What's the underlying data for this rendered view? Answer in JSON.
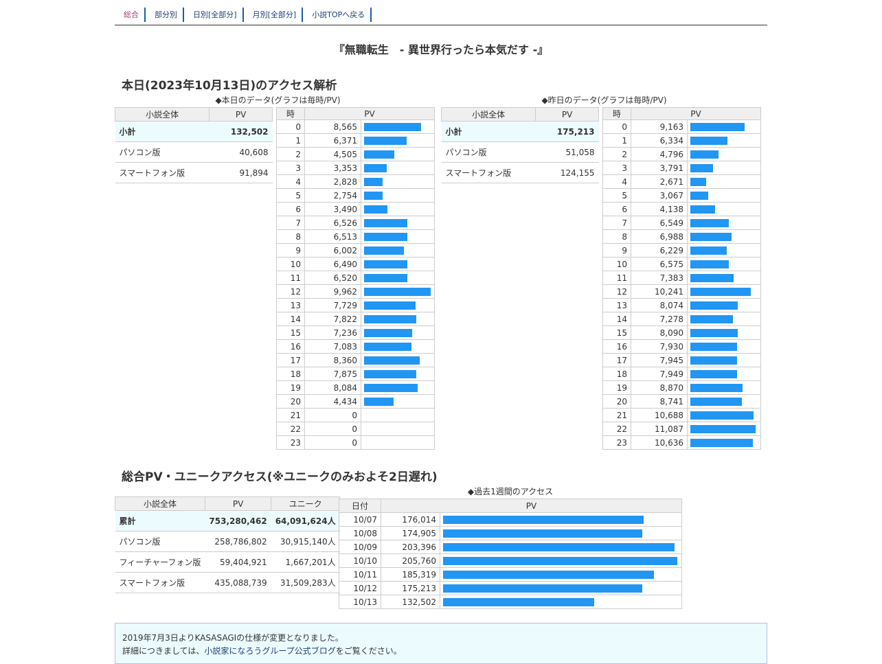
{
  "nav": [
    {
      "label": "総合",
      "current": true
    },
    {
      "label": "部分別",
      "current": false
    },
    {
      "label": "日別[全部分]",
      "current": false
    },
    {
      "label": "月別[全部分]",
      "current": false
    },
    {
      "label": "小説TOPへ戻る",
      "current": false
    }
  ],
  "novel_title": "『無職転生　- 異世界行ったら本気だす -』",
  "today_section": {
    "heading": "本日(2023年10月13日)のアクセス解析",
    "today_caption": "◆本日のデータ(グラフは毎時/PV)",
    "yesterday_caption": "◆昨日のデータ(グラフは毎時/PV)"
  },
  "today_summary": {
    "headers": [
      "小説全体",
      "PV"
    ],
    "rows": [
      {
        "label": "小計",
        "value": "132,502",
        "total": true
      },
      {
        "label": "パソコン版",
        "value": "40,608"
      },
      {
        "label": "スマートフォン版",
        "value": "91,894"
      }
    ]
  },
  "yesterday_summary": {
    "headers": [
      "小説全体",
      "PV"
    ],
    "rows": [
      {
        "label": "小計",
        "value": "175,213",
        "total": true
      },
      {
        "label": "パソコン版",
        "value": "51,058"
      },
      {
        "label": "スマートフォン版",
        "value": "124,155"
      }
    ]
  },
  "hourly_headers": [
    "時",
    "PV"
  ],
  "today_hourly": [
    {
      "hour": "0",
      "pv": "8,565",
      "n": 8565
    },
    {
      "hour": "1",
      "pv": "6,371",
      "n": 6371
    },
    {
      "hour": "2",
      "pv": "4,505",
      "n": 4505
    },
    {
      "hour": "3",
      "pv": "3,353",
      "n": 3353
    },
    {
      "hour": "4",
      "pv": "2,828",
      "n": 2828
    },
    {
      "hour": "5",
      "pv": "2,754",
      "n": 2754
    },
    {
      "hour": "6",
      "pv": "3,490",
      "n": 3490
    },
    {
      "hour": "7",
      "pv": "6,526",
      "n": 6526
    },
    {
      "hour": "8",
      "pv": "6,513",
      "n": 6513
    },
    {
      "hour": "9",
      "pv": "6,002",
      "n": 6002
    },
    {
      "hour": "10",
      "pv": "6,490",
      "n": 6490
    },
    {
      "hour": "11",
      "pv": "6,520",
      "n": 6520
    },
    {
      "hour": "12",
      "pv": "9,962",
      "n": 9962
    },
    {
      "hour": "13",
      "pv": "7,729",
      "n": 7729
    },
    {
      "hour": "14",
      "pv": "7,822",
      "n": 7822
    },
    {
      "hour": "15",
      "pv": "7,236",
      "n": 7236
    },
    {
      "hour": "16",
      "pv": "7,083",
      "n": 7083
    },
    {
      "hour": "17",
      "pv": "8,360",
      "n": 8360
    },
    {
      "hour": "18",
      "pv": "7,875",
      "n": 7875
    },
    {
      "hour": "19",
      "pv": "8,084",
      "n": 8084
    },
    {
      "hour": "20",
      "pv": "4,434",
      "n": 4434
    },
    {
      "hour": "21",
      "pv": "0",
      "n": 0
    },
    {
      "hour": "22",
      "pv": "0",
      "n": 0
    },
    {
      "hour": "23",
      "pv": "0",
      "n": 0
    }
  ],
  "yesterday_hourly": [
    {
      "hour": "0",
      "pv": "9,163",
      "n": 9163
    },
    {
      "hour": "1",
      "pv": "6,334",
      "n": 6334
    },
    {
      "hour": "2",
      "pv": "4,796",
      "n": 4796
    },
    {
      "hour": "3",
      "pv": "3,791",
      "n": 3791
    },
    {
      "hour": "4",
      "pv": "2,671",
      "n": 2671
    },
    {
      "hour": "5",
      "pv": "3,067",
      "n": 3067
    },
    {
      "hour": "6",
      "pv": "4,138",
      "n": 4138
    },
    {
      "hour": "7",
      "pv": "6,549",
      "n": 6549
    },
    {
      "hour": "8",
      "pv": "6,988",
      "n": 6988
    },
    {
      "hour": "9",
      "pv": "6,229",
      "n": 6229
    },
    {
      "hour": "10",
      "pv": "6,575",
      "n": 6575
    },
    {
      "hour": "11",
      "pv": "7,383",
      "n": 7383
    },
    {
      "hour": "12",
      "pv": "10,241",
      "n": 10241
    },
    {
      "hour": "13",
      "pv": "8,074",
      "n": 8074
    },
    {
      "hour": "14",
      "pv": "7,278",
      "n": 7278
    },
    {
      "hour": "15",
      "pv": "8,090",
      "n": 8090
    },
    {
      "hour": "16",
      "pv": "7,930",
      "n": 7930
    },
    {
      "hour": "17",
      "pv": "7,945",
      "n": 7945
    },
    {
      "hour": "18",
      "pv": "7,949",
      "n": 7949
    },
    {
      "hour": "19",
      "pv": "8,870",
      "n": 8870
    },
    {
      "hour": "20",
      "pv": "8,741",
      "n": 8741
    },
    {
      "hour": "21",
      "pv": "10,688",
      "n": 10688
    },
    {
      "hour": "22",
      "pv": "11,087",
      "n": 11087
    },
    {
      "hour": "23",
      "pv": "10,636",
      "n": 10636
    }
  ],
  "total_section": {
    "heading": "総合PV・ユニークアクセス(※ユニークのみおよそ2日遅れ)",
    "weekly_caption": "◆過去1週間のアクセス"
  },
  "total_summary": {
    "headers": [
      "小説全体",
      "PV",
      "ユニーク"
    ],
    "rows": [
      {
        "label": "累計",
        "pv": "753,280,462",
        "unique": "64,091,624人",
        "total": true
      },
      {
        "label": "パソコン版",
        "pv": "258,786,802",
        "unique": "30,915,140人"
      },
      {
        "label": "フィーチャーフォン版",
        "pv": "59,404,921",
        "unique": "1,667,201人"
      },
      {
        "label": "スマートフォン版",
        "pv": "435,088,739",
        "unique": "31,509,283人"
      }
    ]
  },
  "weekly_headers": [
    "日付",
    "PV"
  ],
  "weekly": [
    {
      "date": "10/07",
      "pv": "176,014",
      "n": 176014
    },
    {
      "date": "10/08",
      "pv": "174,905",
      "n": 174905
    },
    {
      "date": "10/09",
      "pv": "203,396",
      "n": 203396
    },
    {
      "date": "10/10",
      "pv": "205,760",
      "n": 205760
    },
    {
      "date": "10/11",
      "pv": "185,319",
      "n": 185319
    },
    {
      "date": "10/12",
      "pv": "175,213",
      "n": 175213
    },
    {
      "date": "10/13",
      "pv": "132,502",
      "n": 132502
    }
  ],
  "notice": {
    "line1": "2019年7月3日よりKASASAGIの仕様が変更となりました。",
    "line2_prefix": "詳細につきましては、",
    "line2_link": "小説家になろうグループ公式ブログ",
    "line2_suffix": "をご覧ください。"
  },
  "colors": {
    "bar": "#2196f3",
    "total_row_bg": "#ecfbfd",
    "nav_border": "#1a5cad"
  }
}
